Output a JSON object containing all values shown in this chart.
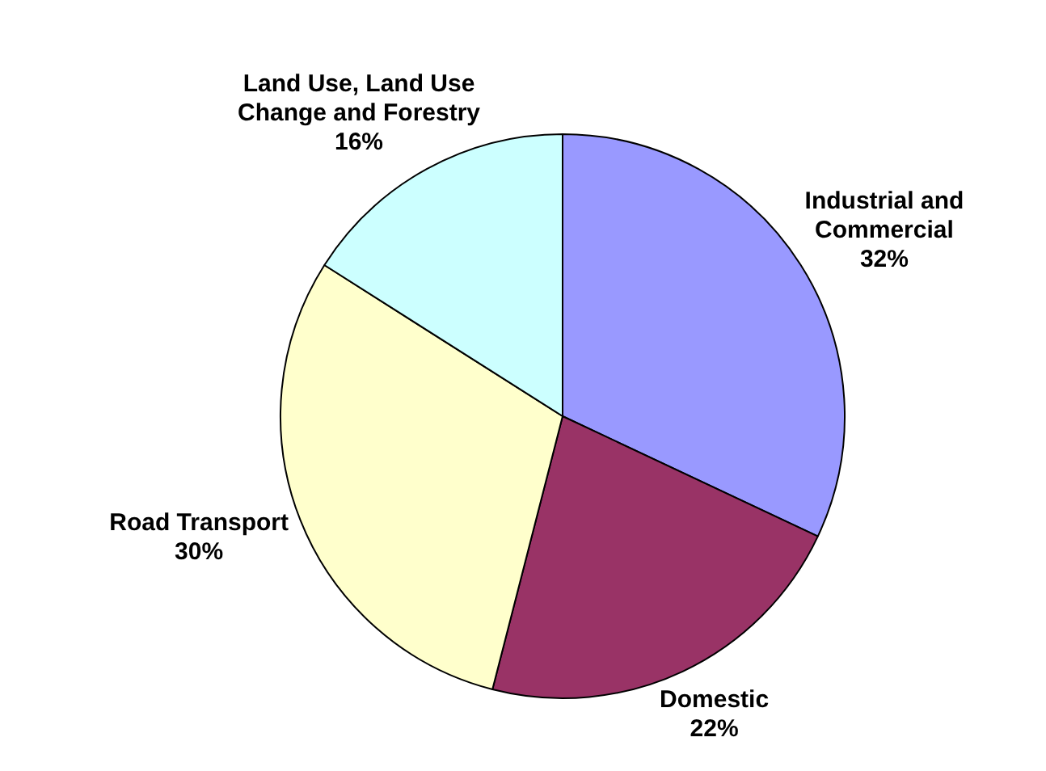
{
  "chart_data": {
    "type": "pie",
    "categories": [
      "Industrial and Commercial",
      "Domestic",
      "Road Transport",
      "Land Use, Land Use Change and Forestry"
    ],
    "values": [
      32,
      22,
      30,
      16
    ],
    "colors": [
      "#9999ff",
      "#993366",
      "#ffffcc",
      "#ccffff"
    ],
    "value_labels": [
      "32%",
      "22%",
      "30%",
      "16%"
    ],
    "legend": false
  }
}
